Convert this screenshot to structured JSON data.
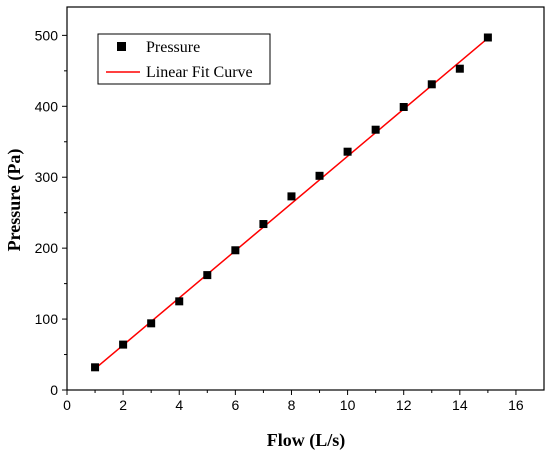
{
  "chart_data": {
    "type": "scatter",
    "title": "",
    "xlabel": "Flow (L/s)",
    "ylabel": "Pressure (Pa)",
    "xlim": [
      0,
      17
    ],
    "ylim": [
      0,
      540
    ],
    "x_ticks": [
      0,
      2,
      4,
      6,
      8,
      10,
      12,
      14,
      16
    ],
    "y_ticks": [
      0,
      100,
      200,
      300,
      400,
      500
    ],
    "grid": false,
    "legend_position": "top-left",
    "series": [
      {
        "name": "Pressure",
        "kind": "scatter",
        "marker": "square",
        "color": "#000000",
        "x": [
          1,
          2,
          3,
          4,
          5,
          6,
          7,
          8,
          9,
          10,
          11,
          12,
          13,
          14,
          15
        ],
        "y": [
          32,
          64,
          94,
          125,
          162,
          197,
          234,
          273,
          302,
          336,
          367,
          399,
          431,
          453,
          497
        ]
      },
      {
        "name": "Linear Fit Curve",
        "kind": "line",
        "color": "#ff0000",
        "x": [
          1,
          15
        ],
        "y": [
          30,
          496
        ]
      }
    ]
  }
}
